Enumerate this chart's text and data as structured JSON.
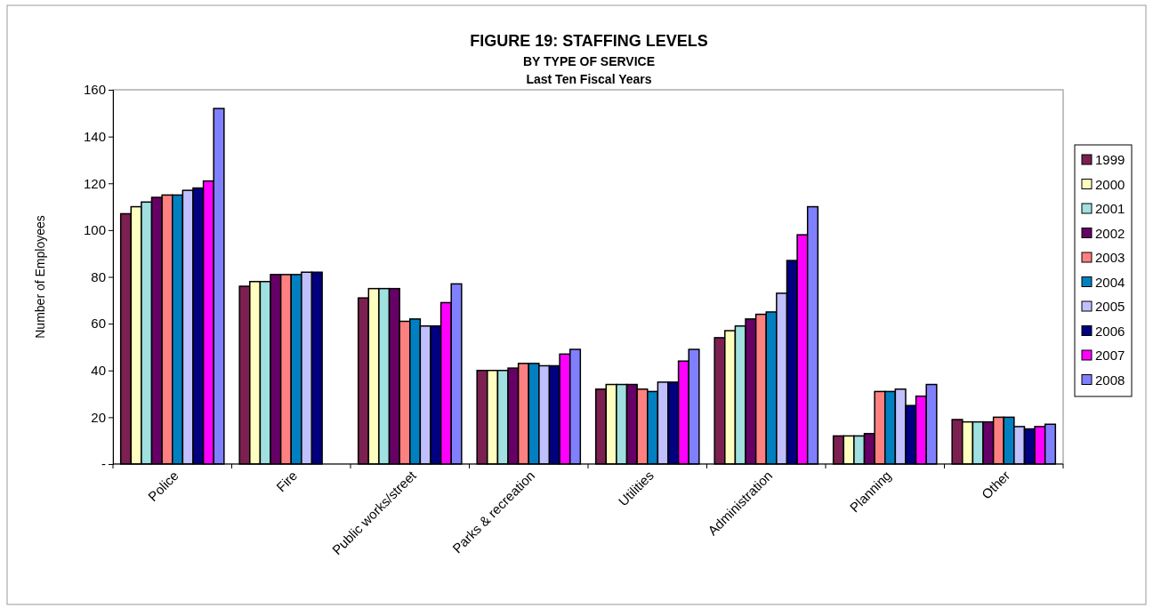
{
  "chart_data": {
    "type": "bar",
    "title": "FIGURE 19: STAFFING LEVELS",
    "subtitle": "BY TYPE OF SERVICE\nLast Ten Fiscal Years",
    "ylabel": "Number of Employees",
    "categories": [
      "Police",
      "Fire",
      "Public works/street",
      "Parks & recreation",
      "Utilities",
      "Administration",
      "Planning",
      "Other"
    ],
    "series": [
      {
        "name": "1999",
        "color": "#7b2050",
        "values": [
          107,
          76,
          71,
          40,
          32,
          54,
          12,
          19
        ]
      },
      {
        "name": "2000",
        "color": "#ffffc0",
        "values": [
          110,
          78,
          75,
          40,
          34,
          57,
          12,
          18
        ]
      },
      {
        "name": "2001",
        "color": "#a0e0e0",
        "values": [
          112,
          78,
          75,
          40,
          34,
          59,
          12,
          18
        ]
      },
      {
        "name": "2002",
        "color": "#660066",
        "values": [
          114,
          81,
          75,
          41,
          34,
          62,
          13,
          18
        ]
      },
      {
        "name": "2003",
        "color": "#ff8080",
        "values": [
          115,
          81,
          61,
          43,
          32,
          64,
          31,
          20
        ]
      },
      {
        "name": "2004",
        "color": "#0080c0",
        "values": [
          115,
          81,
          62,
          43,
          31,
          65,
          31,
          20
        ]
      },
      {
        "name": "2005",
        "color": "#c0c0ff",
        "values": [
          117,
          82,
          59,
          42,
          35,
          73,
          32,
          16
        ]
      },
      {
        "name": "2006",
        "color": "#000080",
        "values": [
          118,
          82,
          59,
          42,
          35,
          87,
          25,
          15
        ]
      },
      {
        "name": "2007",
        "color": "#ff00ff",
        "values": [
          121,
          null,
          69,
          47,
          44,
          98,
          29,
          16
        ]
      },
      {
        "name": "2008",
        "color": "#8080ff",
        "values": [
          152,
          null,
          77,
          49,
          49,
          110,
          34,
          17
        ]
      }
    ],
    "ylim": [
      0,
      160
    ],
    "yticks": [
      {
        "value": 0,
        "label": "-"
      },
      20,
      40,
      60,
      80,
      100,
      120,
      140,
      160
    ],
    "grid": false,
    "legend": "right"
  }
}
